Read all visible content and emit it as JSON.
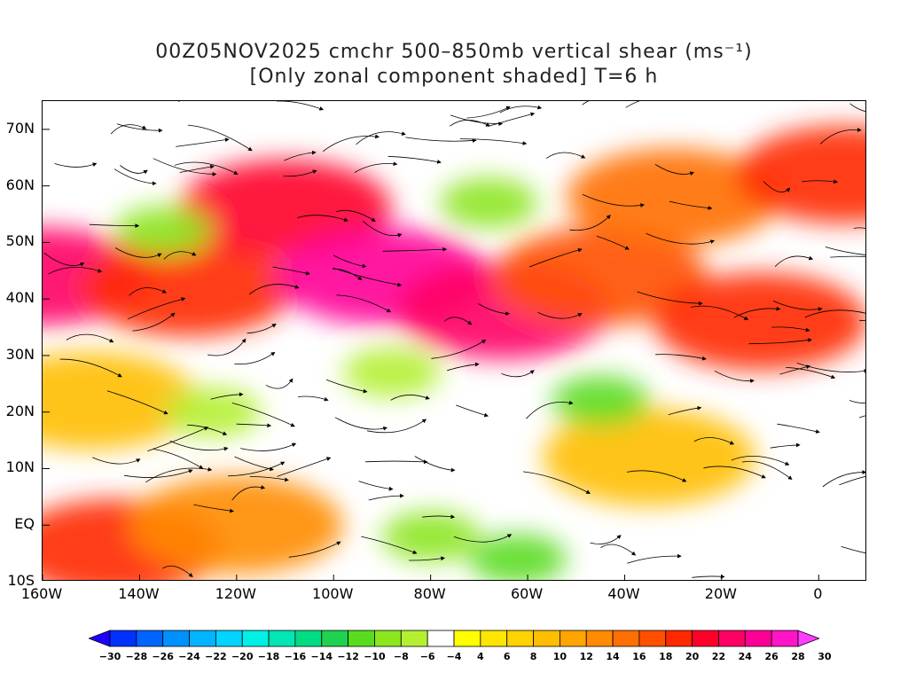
{
  "title": {
    "line1": "00Z05NOV2025 cmchr 500–850mb vertical shear (ms⁻¹)",
    "line2": "[Only zonal component shaded] T=6 h"
  },
  "chart_data": {
    "type": "heatmap",
    "projection": "lat-lon",
    "lon_range": [
      -160,
      10
    ],
    "lat_range": [
      -10,
      75
    ],
    "x_ticks": [
      {
        "lon": -160,
        "label": "160W"
      },
      {
        "lon": -140,
        "label": "140W"
      },
      {
        "lon": -120,
        "label": "120W"
      },
      {
        "lon": -100,
        "label": "100W"
      },
      {
        "lon": -80,
        "label": "80W"
      },
      {
        "lon": -60,
        "label": "60W"
      },
      {
        "lon": -40,
        "label": "40W"
      },
      {
        "lon": -20,
        "label": "20W"
      },
      {
        "lon": 0,
        "label": "0"
      }
    ],
    "y_ticks": [
      {
        "lat": 70,
        "label": "70N"
      },
      {
        "lat": 60,
        "label": "60N"
      },
      {
        "lat": 50,
        "label": "50N"
      },
      {
        "lat": 40,
        "label": "40N"
      },
      {
        "lat": 30,
        "label": "30N"
      },
      {
        "lat": 20,
        "label": "20N"
      },
      {
        "lat": 10,
        "label": "10N"
      },
      {
        "lat": 0,
        "label": "EQ"
      },
      {
        "lat": -10,
        "label": "10S"
      }
    ],
    "colorbar": {
      "levels": [
        -30,
        -28,
        -26,
        -24,
        -22,
        -20,
        -18,
        -16,
        -14,
        -12,
        -10,
        -8,
        -6,
        -4,
        4,
        6,
        8,
        10,
        12,
        14,
        16,
        18,
        20,
        22,
        24,
        26,
        28,
        30
      ],
      "labels": [
        "-30",
        "-28",
        "-26",
        "-24",
        "-22",
        "-20",
        "-18",
        "-16",
        "-14",
        "-12",
        "-10",
        "-8",
        "-6",
        "-4",
        "4",
        "6",
        "8",
        "10",
        "12",
        "14",
        "16",
        "18",
        "20",
        "22",
        "24",
        "26",
        "28",
        "30"
      ],
      "colors": [
        "#1f00ff",
        "#0032ff",
        "#0064ff",
        "#0091ff",
        "#00b4ff",
        "#00d4ff",
        "#00f0e6",
        "#00e6b4",
        "#00dc82",
        "#1ed250",
        "#5adc1e",
        "#8ce61e",
        "#b4f032",
        "#ffffff",
        "#ffff00",
        "#ffe600",
        "#ffd200",
        "#ffbe00",
        "#ffa500",
        "#ff8c00",
        "#ff6e00",
        "#ff5000",
        "#ff2800",
        "#ff0028",
        "#ff0064",
        "#ff0096",
        "#ff14c8",
        "#ff3cff"
      ],
      "extend": "both"
    },
    "shear_fields": [
      {
        "kind": "positive",
        "lon": -160,
        "lat": 44,
        "value": 24
      },
      {
        "kind": "positive",
        "lon": -130,
        "lat": 42,
        "value": 20
      },
      {
        "kind": "positive",
        "lon": -110,
        "lat": 56,
        "value": 22
      },
      {
        "kind": "positive",
        "lon": -90,
        "lat": 44,
        "value": 26
      },
      {
        "kind": "positive",
        "lon": -65,
        "lat": 38,
        "value": 24
      },
      {
        "kind": "positive",
        "lon": -45,
        "lat": 44,
        "value": 18
      },
      {
        "kind": "positive",
        "lon": -30,
        "lat": 58,
        "value": 16
      },
      {
        "kind": "positive",
        "lon": -12,
        "lat": 36,
        "value": 20
      },
      {
        "kind": "positive",
        "lon": 5,
        "lat": 62,
        "value": 20
      },
      {
        "kind": "positive",
        "lon": -145,
        "lat": -4,
        "value": 20
      },
      {
        "kind": "positive",
        "lon": -120,
        "lat": 0,
        "value": 14
      },
      {
        "kind": "positive",
        "lon": -35,
        "lat": 12,
        "value": 10
      },
      {
        "kind": "positive",
        "lon": -150,
        "lat": 22,
        "value": 10
      },
      {
        "kind": "negative",
        "lon": -80,
        "lat": -2,
        "value": -8
      },
      {
        "kind": "negative",
        "lon": -62,
        "lat": -6,
        "value": -10
      },
      {
        "kind": "negative",
        "lon": -45,
        "lat": 22,
        "value": -10
      },
      {
        "kind": "negative",
        "lon": -135,
        "lat": 52,
        "value": -8
      },
      {
        "kind": "negative",
        "lon": -68,
        "lat": 57,
        "value": -8
      },
      {
        "kind": "negative",
        "lon": -88,
        "lat": 27,
        "value": -6
      },
      {
        "kind": "negative",
        "lon": -125,
        "lat": 20,
        "value": -6
      }
    ],
    "overlay": "streamlines (black, arrowed)"
  }
}
